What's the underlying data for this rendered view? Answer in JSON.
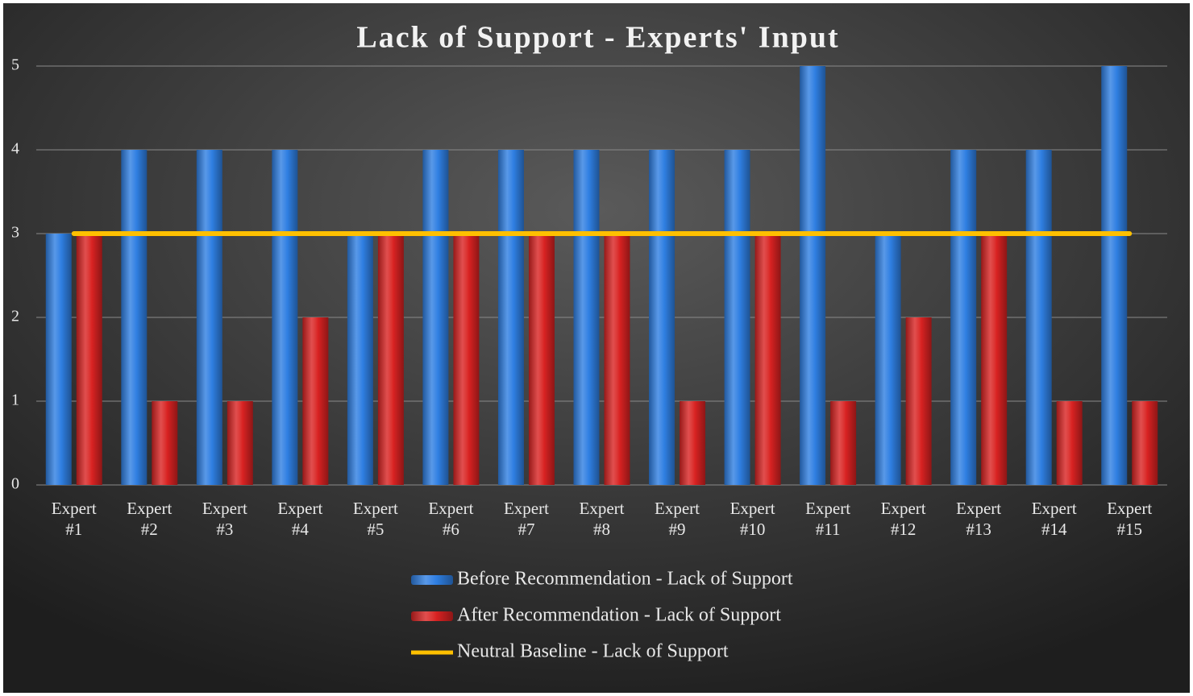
{
  "chart_data": {
    "type": "bar",
    "title": "Lack of Support - Experts' Input",
    "categories": [
      "Expert #1",
      "Expert #2",
      "Expert #3",
      "Expert #4",
      "Expert #5",
      "Expert #6",
      "Expert #7",
      "Expert #8",
      "Expert #9",
      "Expert #10",
      "Expert #11",
      "Expert #12",
      "Expert #13",
      "Expert #14",
      "Expert #15"
    ],
    "series": [
      {
        "name": "Before Recommendation - Lack of Support",
        "color": "#2f7fe2",
        "type": "bar",
        "values": [
          3,
          4,
          4,
          4,
          3,
          4,
          4,
          4,
          4,
          4,
          5,
          3,
          4,
          4,
          5
        ]
      },
      {
        "name": "After Recommendation - Lack of Support",
        "color": "#d92222",
        "type": "bar",
        "values": [
          3,
          1,
          1,
          2,
          3,
          3,
          3,
          3,
          1,
          3,
          1,
          2,
          3,
          1,
          1
        ]
      },
      {
        "name": "Neutral Baseline - Lack of Support",
        "color": "#ffc000",
        "type": "line",
        "values": [
          3,
          3,
          3,
          3,
          3,
          3,
          3,
          3,
          3,
          3,
          3,
          3,
          3,
          3,
          3
        ]
      }
    ],
    "ylim": [
      0,
      5
    ],
    "yticks": [
      0,
      1,
      2,
      3,
      4,
      5
    ],
    "grid": true,
    "legend": "bottom"
  }
}
